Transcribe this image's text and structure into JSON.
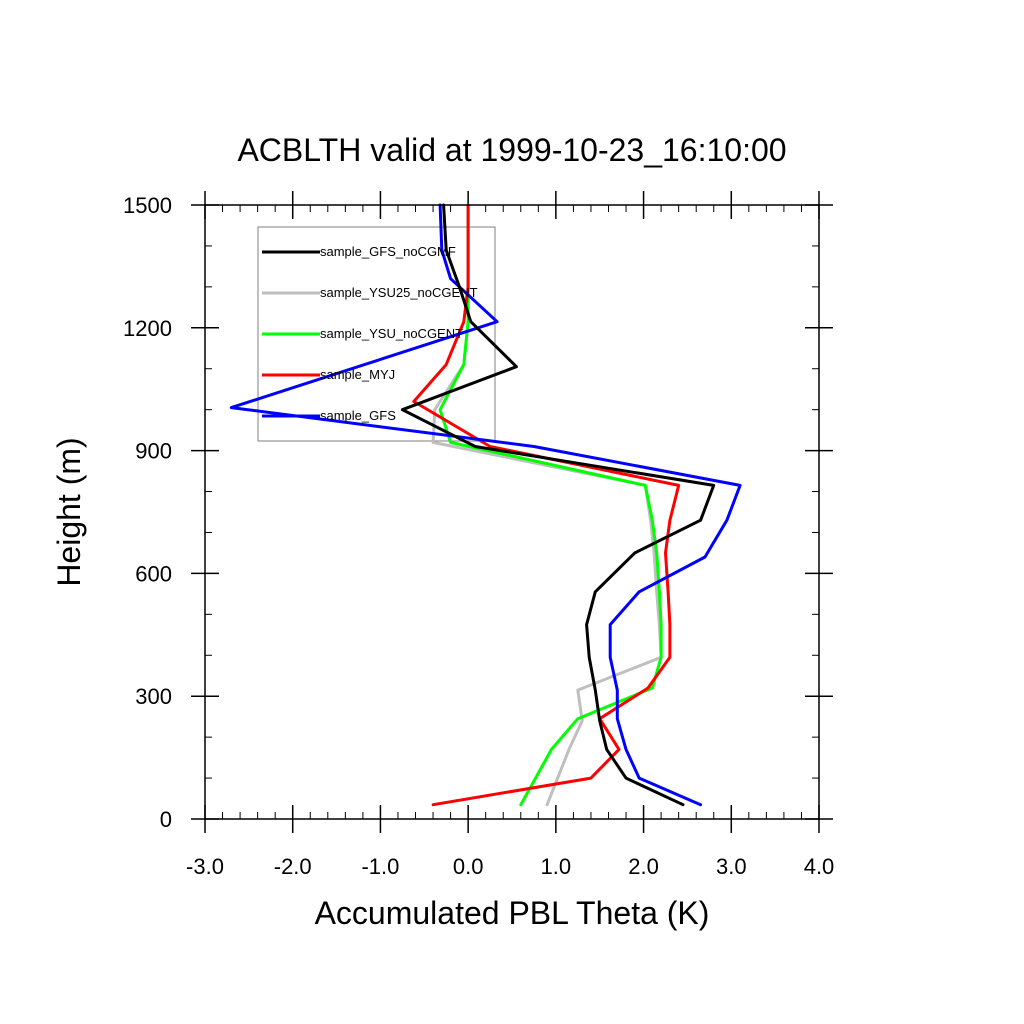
{
  "chart_data": {
    "type": "line",
    "title": "ACBLTH valid at 1999-10-23_16:10:00",
    "xlabel": "Accumulated PBL Theta (K)",
    "ylabel": "Height (m)",
    "xlim": [
      -3.0,
      4.0
    ],
    "ylim": [
      0,
      1500
    ],
    "x_ticks": [
      "-3.0",
      "-2.0",
      "-1.0",
      "0.0",
      "1.0",
      "2.0",
      "3.0",
      "4.0"
    ],
    "y_ticks": [
      "0",
      "300",
      "600",
      "900",
      "1200",
      "1500"
    ],
    "legend_position": "upper-left",
    "series": [
      {
        "name": "sample_GFS_noCGMF",
        "color": "#000000",
        "points": [
          [
            2.45,
            35
          ],
          [
            1.8,
            100
          ],
          [
            1.58,
            170
          ],
          [
            1.5,
            240
          ],
          [
            1.45,
            315
          ],
          [
            1.38,
            395
          ],
          [
            1.35,
            475
          ],
          [
            1.45,
            555
          ],
          [
            1.9,
            650
          ],
          [
            2.65,
            730
          ],
          [
            2.8,
            815
          ],
          [
            0.08,
            910
          ],
          [
            -0.75,
            1000
          ],
          [
            0.55,
            1105
          ],
          [
            0.03,
            1215
          ],
          [
            -0.1,
            1300
          ],
          [
            -0.25,
            1390
          ],
          [
            -0.28,
            1500
          ]
        ]
      },
      {
        "name": "sample_YSU25_noCGENT",
        "color": "#bfbfbf",
        "points": [
          [
            0.9,
            35
          ],
          [
            1.15,
            170
          ],
          [
            1.3,
            240
          ],
          [
            1.25,
            315
          ],
          [
            2.2,
            395
          ],
          [
            2.18,
            475
          ],
          [
            2.15,
            555
          ],
          [
            2.12,
            650
          ],
          [
            2.08,
            730
          ],
          [
            2.02,
            815
          ],
          [
            -0.4,
            920
          ],
          [
            -0.38,
            1000
          ],
          [
            -0.05,
            1110
          ],
          [
            0.0,
            1215
          ],
          [
            0.0,
            1300
          ],
          [
            0.0,
            1390
          ],
          [
            0.0,
            1500
          ]
        ]
      },
      {
        "name": "sample_YSU_noCGENT",
        "color": "#00ff00",
        "points": [
          [
            0.6,
            35
          ],
          [
            0.95,
            170
          ],
          [
            1.25,
            245
          ],
          [
            2.1,
            320
          ],
          [
            2.2,
            395
          ],
          [
            2.2,
            475
          ],
          [
            2.18,
            555
          ],
          [
            2.15,
            650
          ],
          [
            2.1,
            730
          ],
          [
            2.02,
            815
          ],
          [
            -0.2,
            920
          ],
          [
            -0.32,
            1000
          ],
          [
            -0.05,
            1110
          ],
          [
            0.0,
            1215
          ],
          [
            0.0,
            1300
          ],
          [
            0.0,
            1390
          ],
          [
            0.0,
            1500
          ]
        ]
      },
      {
        "name": "sample_MYJ",
        "color": "#ff0000",
        "points": [
          [
            -0.4,
            35
          ],
          [
            1.4,
            100
          ],
          [
            1.72,
            170
          ],
          [
            1.5,
            245
          ],
          [
            2.05,
            320
          ],
          [
            2.3,
            395
          ],
          [
            2.3,
            475
          ],
          [
            2.28,
            555
          ],
          [
            2.25,
            650
          ],
          [
            2.3,
            730
          ],
          [
            2.4,
            815
          ],
          [
            0.25,
            910
          ],
          [
            -0.62,
            1020
          ],
          [
            -0.25,
            1110
          ],
          [
            -0.05,
            1215
          ],
          [
            0.0,
            1300
          ],
          [
            0.0,
            1390
          ],
          [
            0.0,
            1500
          ]
        ]
      },
      {
        "name": "sample_GFS",
        "color": "#0000ff",
        "points": [
          [
            2.65,
            35
          ],
          [
            1.95,
            100
          ],
          [
            1.8,
            170
          ],
          [
            1.7,
            245
          ],
          [
            1.7,
            315
          ],
          [
            1.62,
            395
          ],
          [
            1.62,
            475
          ],
          [
            1.95,
            555
          ],
          [
            2.7,
            640
          ],
          [
            2.95,
            730
          ],
          [
            3.1,
            815
          ],
          [
            0.75,
            910
          ],
          [
            -2.7,
            1005
          ],
          [
            0.33,
            1215
          ],
          [
            -0.2,
            1320
          ],
          [
            -0.3,
            1390
          ],
          [
            -0.32,
            1500
          ]
        ]
      }
    ]
  }
}
